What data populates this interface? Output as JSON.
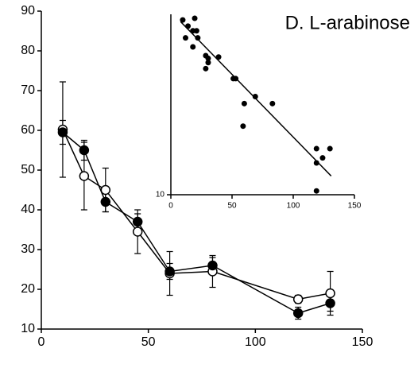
{
  "chart_data": [
    {
      "type": "line",
      "title": "D. L-arabinose",
      "x": [
        10,
        20,
        30,
        45,
        60,
        80,
        120,
        135
      ],
      "series": [
        {
          "name": "open",
          "color": "#000",
          "marker": "open",
          "values": [
            60.2,
            48.5,
            45,
            34.5,
            24,
            24.5,
            17.5,
            19
          ],
          "errors": [
            12,
            8.5,
            5.5,
            5.5,
            5.5,
            4,
            1,
            5.5
          ]
        },
        {
          "name": "filled",
          "color": "#000",
          "marker": "filled",
          "values": [
            59.5,
            55,
            42,
            37,
            24.5,
            26,
            14,
            16.5
          ],
          "errors": [
            3,
            2.5,
            2.5,
            2,
            2,
            2,
            1.5,
            2
          ]
        }
      ],
      "xlim": [
        0,
        150
      ],
      "xticks": [
        0,
        50,
        100,
        150
      ],
      "ylim": [
        10,
        90
      ],
      "yticks": [
        10,
        20,
        30,
        40,
        50,
        60,
        70,
        80,
        90
      ]
    },
    {
      "type": "scatter",
      "log_y": true,
      "x": [
        9.7,
        14,
        19.5,
        12,
        18,
        21,
        22,
        18,
        28.5,
        30.5,
        30.5,
        28.5,
        39,
        51,
        53,
        60,
        59,
        69,
        83,
        119,
        130,
        124,
        119,
        119
      ],
      "values": [
        93,
        86,
        95,
        74,
        81,
        81,
        74,
        66,
        59,
        57,
        54,
        50,
        58,
        44,
        44,
        32,
        24,
        35,
        32,
        18,
        18,
        16,
        15,
        10.5
      ],
      "fit": {
        "x": [
          8,
          131
        ],
        "values": [
          91,
          12.7
        ]
      },
      "color": "#000",
      "xlim": [
        0,
        150
      ],
      "xticks": [
        0,
        50,
        100,
        150
      ],
      "ylim": [
        10,
        100
      ],
      "yticks": [
        10
      ]
    }
  ]
}
